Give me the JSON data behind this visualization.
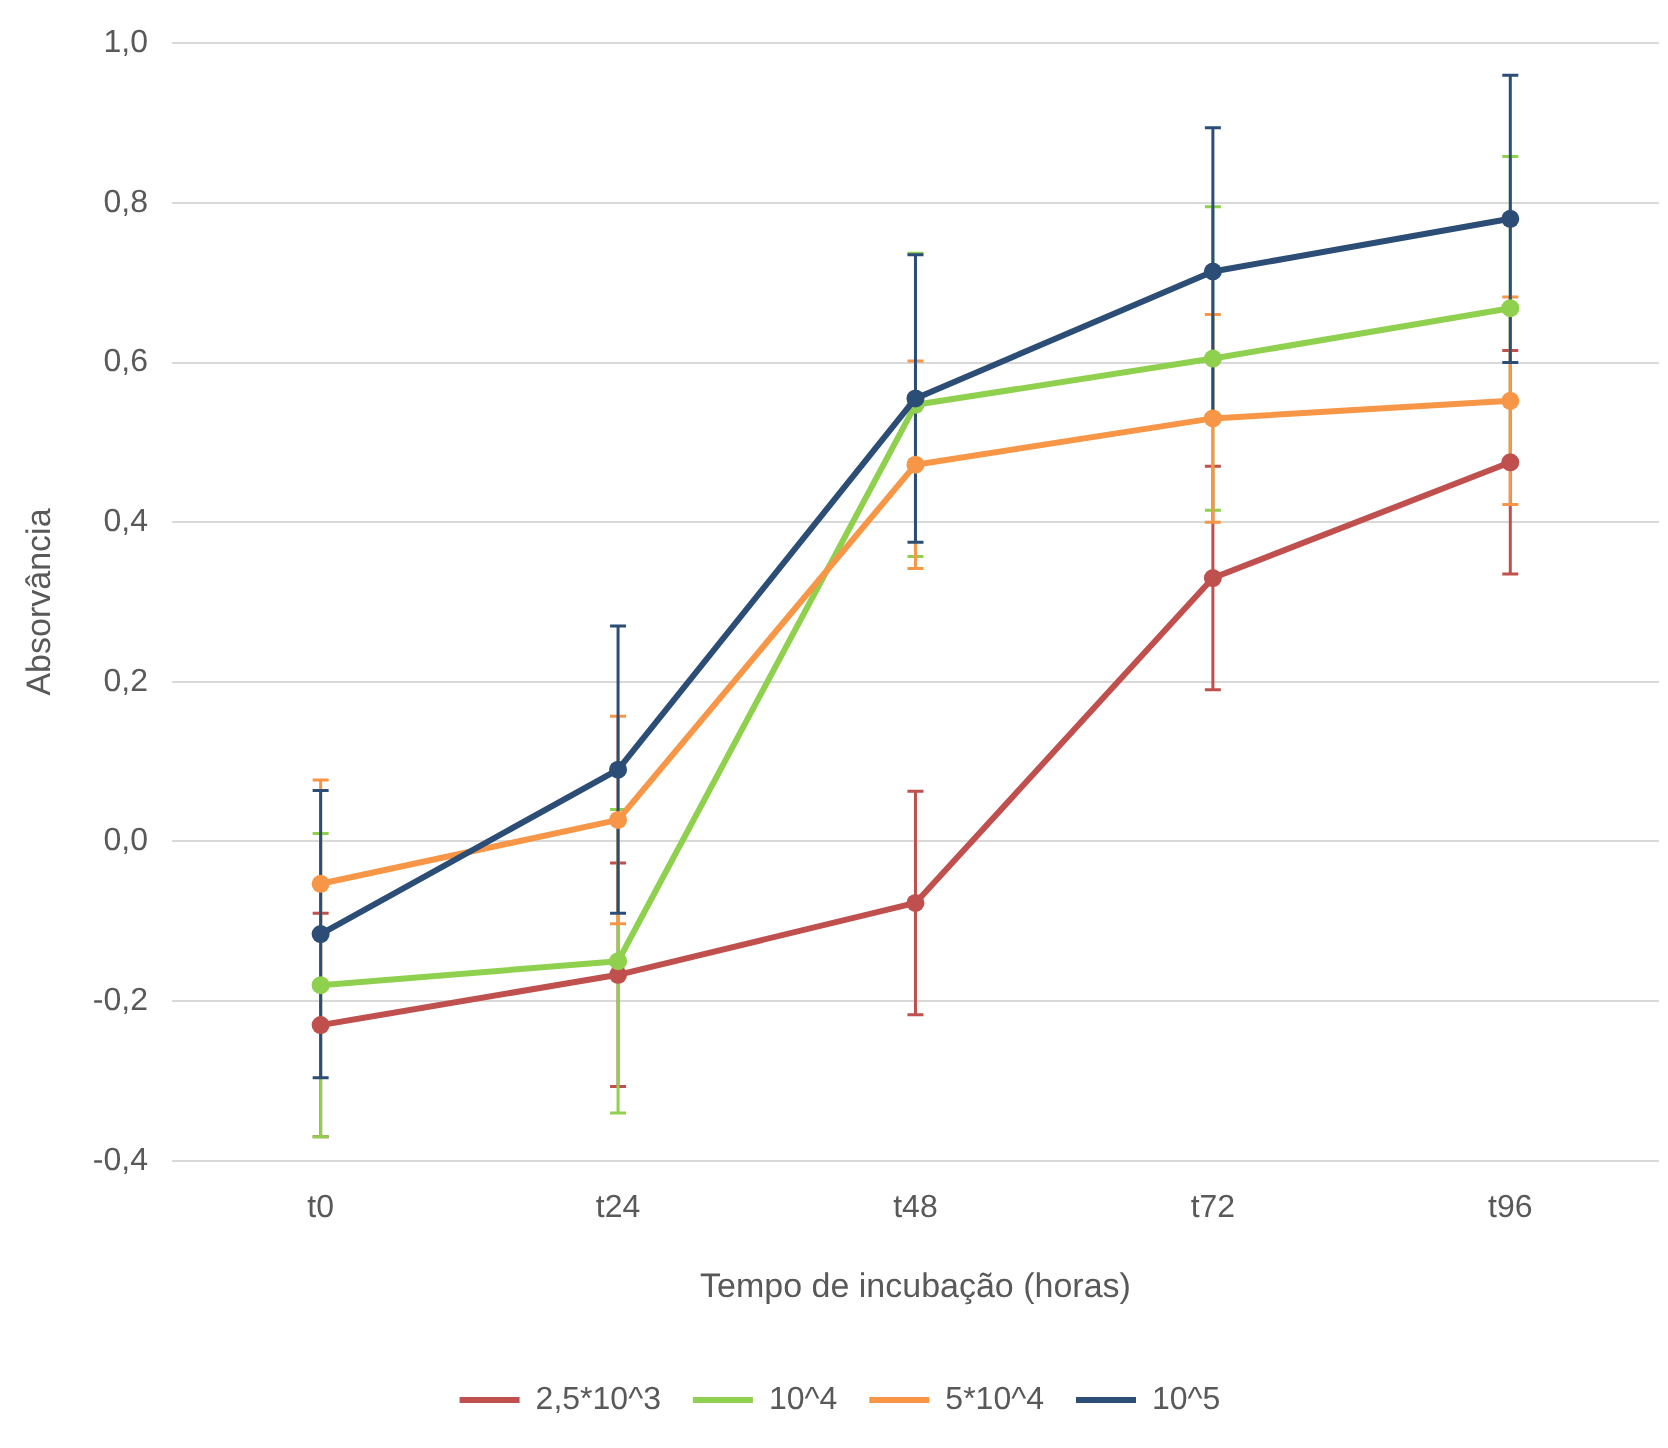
{
  "chart_data": {
    "type": "line",
    "xlabel": "Tempo de incubação (horas)",
    "ylabel": "Absorvância",
    "categories": [
      "t0",
      "t24",
      "t48",
      "t72",
      "t96"
    ],
    "series": [
      {
        "name": "2,5*10^3",
        "color": "#c0504d",
        "values": [
          -0.23,
          -0.167,
          -0.077,
          0.33,
          0.475
        ],
        "errors": [
          0.14,
          0.14,
          0.14,
          0.14,
          0.14
        ]
      },
      {
        "name": "10^4",
        "color": "#8fd14f",
        "values": [
          -0.18,
          -0.15,
          0.547,
          0.605,
          0.668
        ],
        "errors": [
          0.19,
          0.19,
          0.19,
          0.19,
          0.19
        ]
      },
      {
        "name": "5*10^4",
        "color": "#f79646",
        "values": [
          -0.053,
          0.027,
          0.472,
          0.53,
          0.552
        ],
        "errors": [
          0.13,
          0.13,
          0.13,
          0.13,
          0.13
        ]
      },
      {
        "name": "10^5",
        "color": "#2c4d75",
        "values": [
          -0.116,
          0.09,
          0.555,
          0.714,
          0.78
        ],
        "errors": [
          0.18,
          0.18,
          0.18,
          0.18,
          0.18
        ]
      }
    ],
    "ylim": [
      -0.4,
      1.0
    ],
    "yticks": [
      {
        "value": -0.4,
        "label": "-0,4"
      },
      {
        "value": -0.2,
        "label": "-0,2"
      },
      {
        "value": 0,
        "label": "0,0"
      },
      {
        "value": 0.2,
        "label": "0,2"
      },
      {
        "value": 0.4,
        "label": "0,4"
      },
      {
        "value": 0.6,
        "label": "0,6"
      },
      {
        "value": 0.8,
        "label": "0,8"
      },
      {
        "value": 1.0,
        "label": "1,0"
      }
    ],
    "grid": "y",
    "legend": "bottom",
    "marker": "circle",
    "line_style": "solid"
  }
}
